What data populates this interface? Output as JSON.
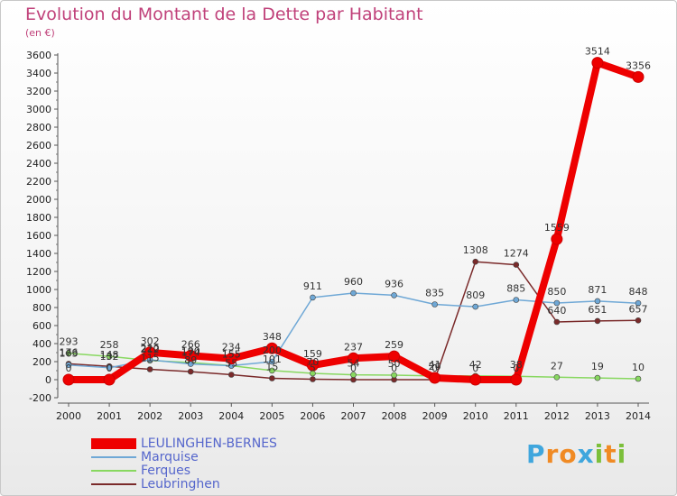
{
  "header": {
    "title": "Evolution du Montant de la Dette par Habitant",
    "unit": "(en €)"
  },
  "brand": {
    "letters": [
      "P",
      "r",
      "o",
      "x",
      "i",
      "t",
      "i"
    ],
    "colors": [
      "#3fa6dd",
      "#f08a24",
      "#f08a24",
      "#3fa6dd",
      "#7cbf3a",
      "#f08a24",
      "#7cbf3a"
    ]
  },
  "chart_data": {
    "type": "line",
    "x": [
      "2000",
      "2001",
      "2002",
      "2003",
      "2004",
      "2005",
      "2006",
      "2007",
      "2008",
      "2009",
      "2010",
      "2011",
      "2012",
      "2013",
      "2014"
    ],
    "ylim": [
      -200,
      3600
    ],
    "yticks": [
      -200,
      0,
      200,
      400,
      600,
      800,
      1000,
      1200,
      1400,
      1600,
      1800,
      2000,
      2200,
      2400,
      2600,
      2800,
      3000,
      3200,
      3400,
      3600
    ],
    "grid": false,
    "legend_position": "bottom-left",
    "series": [
      {
        "name": "LEULINGHEN-BERNES",
        "color": "#ee0000",
        "width": 8,
        "values": [
          0,
          0,
          302,
          266,
          234,
          348,
          159,
          237,
          259,
          20,
          0,
          0,
          1559,
          3514,
          3356
        ],
        "labels": [
          "0",
          "0",
          "302",
          "266",
          "234",
          "348",
          "159",
          "237",
          "259",
          "20",
          "0",
          "0",
          "1559",
          "3514",
          "3356"
        ]
      },
      {
        "name": "Marquise",
        "color": "#6fa8d6",
        "width": 1.5,
        "values": [
          163,
          132,
          220,
          174,
          155,
          200,
          911,
          960,
          936,
          835,
          809,
          885,
          850,
          871,
          848
        ],
        "labels": [
          "163",
          "132",
          "220",
          "174",
          "155",
          "200",
          "911",
          "960",
          "936",
          "835",
          "809",
          "885",
          "850",
          "871",
          "848"
        ]
      },
      {
        "name": "Ferques",
        "color": "#88d860",
        "width": 1.5,
        "values": [
          293,
          258,
          212,
          190,
          155,
          101,
          70,
          54,
          50,
          41,
          42,
          38,
          27,
          19,
          10
        ],
        "labels": [
          "293",
          "258",
          "212",
          "190",
          "155",
          "101",
          "70",
          "54",
          "50",
          "41",
          "42",
          "38",
          "27",
          "19",
          "10"
        ]
      },
      {
        "name": "Leubringhen",
        "color": "#7a2a2a",
        "width": 1.5,
        "values": [
          176,
          148,
          115,
          89,
          55,
          15,
          5,
          0,
          0,
          0,
          1308,
          1274,
          640,
          651,
          657
        ],
        "labels": [
          "176",
          "148",
          "115",
          "89",
          "55",
          "15",
          "5",
          "0",
          "0",
          "0",
          "1308",
          "1274",
          "640",
          "651",
          "657"
        ]
      }
    ]
  }
}
